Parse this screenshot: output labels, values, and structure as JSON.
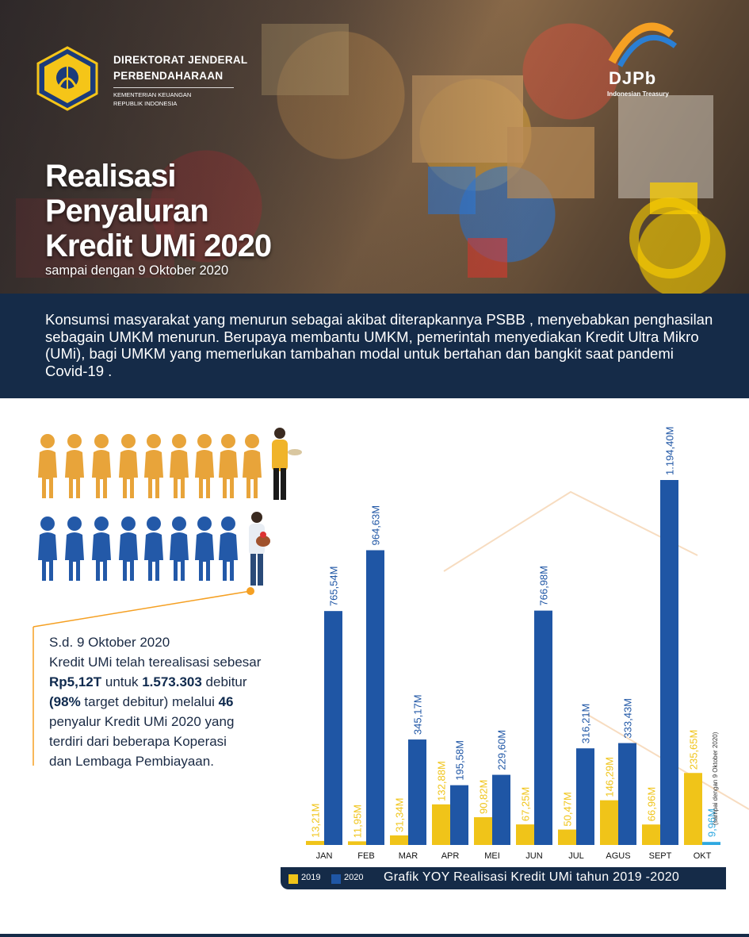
{
  "header": {
    "org_line1": "DIREKTORAT JENDERAL",
    "org_line2": "PERBENDAHARAAN",
    "org_sub1": "KEMENTERIAN KEUANGAN",
    "org_sub2": "REPUBLIK INDONESIA",
    "djpb_logo_text": "DJPb",
    "djpb_sub": "Indonesian Treasury"
  },
  "title": {
    "line1": "Realisasi",
    "line2": "Penyaluran",
    "line3": "Kredit UMi 2020",
    "subtitle": "sampai dengan 9 Oktober 2020"
  },
  "intro": {
    "text": "Konsumsi masyarakat yang menurun sebagai akibat diterapkannya PSBB , menyebabkan penghasilan sebagain UMKM menurun. Berupaya membantu UMKM, pemerintah menyediakan Kredit Ultra Mikro (UMi), bagi UMKM yang memerlukan tambahan modal untuk bertahan dan bangkit saat pandemi Covid-19 ."
  },
  "summary": {
    "line1": "S.d. 9 Oktober 2020",
    "line2": "Kredit UMi telah terealisasi sebesar",
    "amount": "Rp5,12T",
    "mid1": " untuk ",
    "debitur_count": "1.573.303",
    "mid2": " debitur",
    "pct_open": "(",
    "pct": "98%",
    "pct_rest": " target debitur)",
    "mid3": " melalui ",
    "penyalur_count": "46",
    "line5": "penyalur Kredit UMi 2020 yang",
    "line6": "terdiri dari beberapa Koperasi",
    "line7": "dan Lembaga Pembiayaan."
  },
  "colors": {
    "navy": "#152b48",
    "series_2019": "#f0c419",
    "series_2020": "#1f56a5",
    "series_2020_okt": "#2ea8e0",
    "people_orange": "#e8a43a",
    "people_blue": "#2359a8",
    "accent_orange": "#f5a023"
  },
  "chart_data": {
    "type": "bar",
    "title": "Grafik YOY Realisasi Kredit UMi tahun 2019 -2020",
    "categories": [
      "JAN",
      "FEB",
      "MAR",
      "APR",
      "MEI",
      "JUN",
      "JUL",
      "AGUS",
      "SEPT",
      "OKT"
    ],
    "series": [
      {
        "name": "2019",
        "values": [
          13.21,
          11.95,
          31.34,
          132.88,
          90.82,
          67.25,
          50.47,
          146.29,
          66.96,
          235.65
        ],
        "labels": [
          "13,21M",
          "11,95M",
          "31,34M",
          "132,88M",
          "90,82M",
          "67,25M",
          "50,47M",
          "146,29M",
          "66,96M",
          "235,65M"
        ]
      },
      {
        "name": "2020",
        "values": [
          765.54,
          964.63,
          345.17,
          195.58,
          229.6,
          766.98,
          316.21,
          333.43,
          1194.4,
          9.96
        ],
        "labels": [
          "765,54M",
          "964,63M",
          "345,17M",
          "195,58M",
          "229,60M",
          "766,98M",
          "316,21M",
          "333,43M",
          "1.194,40M",
          "9,96M"
        ]
      }
    ],
    "annotation": "(sampai dengan 9 Oktober 2020)",
    "ylim": [
      0,
      1194.4
    ]
  }
}
